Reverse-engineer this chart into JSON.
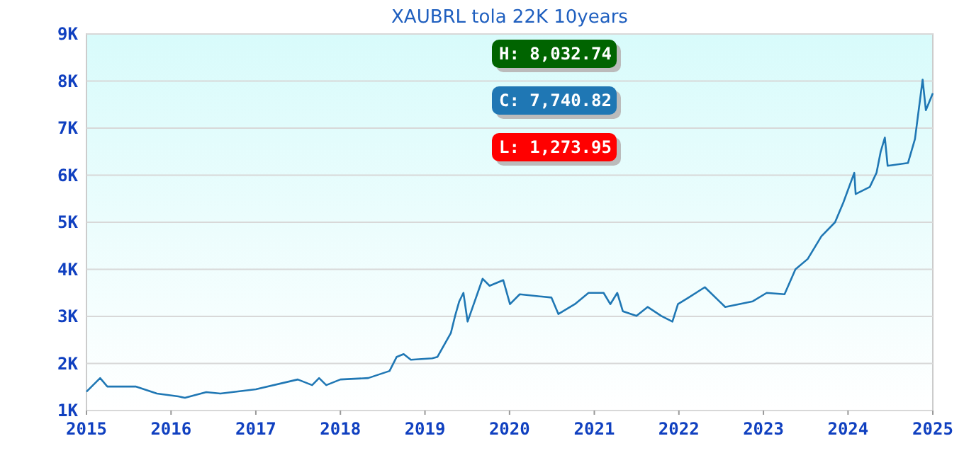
{
  "chart_data": {
    "type": "line",
    "title": "XAUBRL tola 22K 10years",
    "x": [
      "2015-01",
      "2015-03",
      "2015-04",
      "2015-08",
      "2015-11",
      "2016-02",
      "2016-03",
      "2016-06",
      "2016-08",
      "2017-01",
      "2017-07",
      "2017-09",
      "2017-10",
      "2017-11",
      "2018-01",
      "2018-05",
      "2018-08",
      "2018-09",
      "2018-10",
      "2018-11",
      "2019-02-01",
      "2019-02-24",
      "2019-04-23",
      "2019-05-11",
      "2019-05-29",
      "2019-06-16",
      "2019-07-04",
      "2019-09-07",
      "2019-10-07",
      "2019-12-05",
      "2020-01-03",
      "2020-02-14",
      "2020-06-30",
      "2020-07-30",
      "2020-10-09",
      "2020-12-07",
      "2021-02-10",
      "2021-03-11",
      "2021-04-10",
      "2021-05-04",
      "2021-07-02",
      "2021-08-19",
      "2021-10-17",
      "2021-12-04",
      "2021-12-28",
      "2022-02-12",
      "2022-04-23",
      "2022-07-20",
      "2022-11-16",
      "2023-01-15",
      "2023-04-02",
      "2023-05-19",
      "2023-07-11",
      "2023-09-08",
      "2023-11-06",
      "2023-12-12",
      "2024-01-28",
      "2024-02-03",
      "2024-04-04",
      "2024-05-03",
      "2024-05-21",
      "2024-06-08",
      "2024-06-20",
      "2024-09-16",
      "2024-10-16",
      "2024-11-18",
      "2024-12-02",
      "2025-01-01"
    ],
    "series": [
      {
        "color": "#1f77b4",
        "values": [
          1400,
          1690,
          1510,
          1510,
          1360,
          1300,
          1270,
          1390,
          1360,
          1450,
          1660,
          1540,
          1690,
          1540,
          1660,
          1690,
          1840,
          2140,
          2200,
          2080,
          2110,
          2140,
          2650,
          3010,
          3320,
          3500,
          2890,
          3800,
          3650,
          3770,
          3260,
          3470,
          3400,
          3050,
          3260,
          3500,
          3500,
          3260,
          3500,
          3110,
          3010,
          3200,
          3010,
          2890,
          3260,
          3400,
          3620,
          3200,
          3320,
          3500,
          3470,
          4000,
          4220,
          4700,
          5000,
          5420,
          6050,
          5600,
          5750,
          6050,
          6500,
          6800,
          6200,
          6260,
          6770,
          8030,
          7380,
          7740
        ]
      }
    ],
    "xlim": [
      "2015-01-01",
      "2025-01-01"
    ],
    "xticks": [
      {
        "value": "2015",
        "label": "2015"
      },
      {
        "value": "2016",
        "label": "2016"
      },
      {
        "value": "2017",
        "label": "2017"
      },
      {
        "value": "2018",
        "label": "2018"
      },
      {
        "value": "2019",
        "label": "2019"
      },
      {
        "value": "2020",
        "label": "2020"
      },
      {
        "value": "2021",
        "label": "2021"
      },
      {
        "value": "2022",
        "label": "2022"
      },
      {
        "value": "2023",
        "label": "2023"
      },
      {
        "value": "2024",
        "label": "2024"
      },
      {
        "value": "2025",
        "label": "2025"
      }
    ],
    "ylim": [
      1000,
      9000
    ],
    "yticks": [
      {
        "value": 1000,
        "label": "1K"
      },
      {
        "value": 2000,
        "label": "2K"
      },
      {
        "value": 3000,
        "label": "3K"
      },
      {
        "value": 4000,
        "label": "4K"
      },
      {
        "value": 5000,
        "label": "5K"
      },
      {
        "value": 6000,
        "label": "6K"
      },
      {
        "value": 7000,
        "label": "7K"
      },
      {
        "value": 8000,
        "label": "8K"
      },
      {
        "value": 9000,
        "label": "9K"
      }
    ],
    "grid": "y",
    "annotations": [
      "H: 8,032.74",
      "C: 7,740.82",
      "L: 1,273.95"
    ]
  }
}
